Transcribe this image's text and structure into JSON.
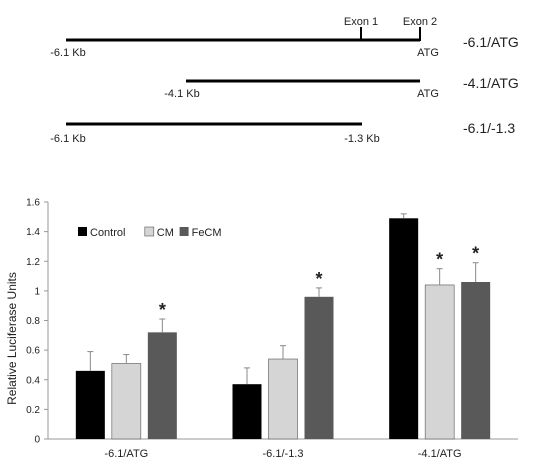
{
  "constructs": [
    {
      "name": "-6.1/ATG",
      "start_label": "-6.1 Kb",
      "end_label": "ATG",
      "exon_labels": [
        "Exon 1",
        "Exon 2"
      ]
    },
    {
      "name": "-4.1/ATG",
      "start_label": "-4.1 Kb",
      "end_label": "ATG",
      "exon_labels": []
    },
    {
      "name": "-6.1/-1.3",
      "start_label": "-6.1 Kb",
      "end_label": "-1.3 Kb",
      "exon_labels": []
    }
  ],
  "chart_data": {
    "type": "bar",
    "title": "",
    "xlabel": "",
    "ylabel": "Relative Luciferase Units",
    "categories": [
      "-6.1/ATG",
      "-6.1/-1.3",
      "-4.1/ATG"
    ],
    "series": [
      {
        "name": "Control",
        "color": "#000000",
        "values": [
          0.46,
          0.37,
          1.49
        ],
        "errors": [
          0.13,
          0.11,
          0.03
        ],
        "significant": [
          false,
          false,
          false
        ]
      },
      {
        "name": "CM",
        "color": "#d5d5d5",
        "values": [
          0.51,
          0.54,
          1.04
        ],
        "errors": [
          0.06,
          0.09,
          0.11
        ],
        "significant": [
          false,
          false,
          true
        ]
      },
      {
        "name": "FeCM",
        "color": "#595959",
        "values": [
          0.72,
          0.96,
          1.06
        ],
        "errors": [
          0.09,
          0.06,
          0.13
        ],
        "significant": [
          true,
          true,
          true
        ]
      }
    ],
    "ylim": [
      0,
      1.6
    ],
    "yticks": [
      "0",
      "0.2",
      "0.4",
      "0.6",
      "0.8",
      "1",
      "1.2",
      "1.4",
      "1.6"
    ],
    "significance_marker": "*",
    "legend_position": "top-left",
    "grid": false
  }
}
